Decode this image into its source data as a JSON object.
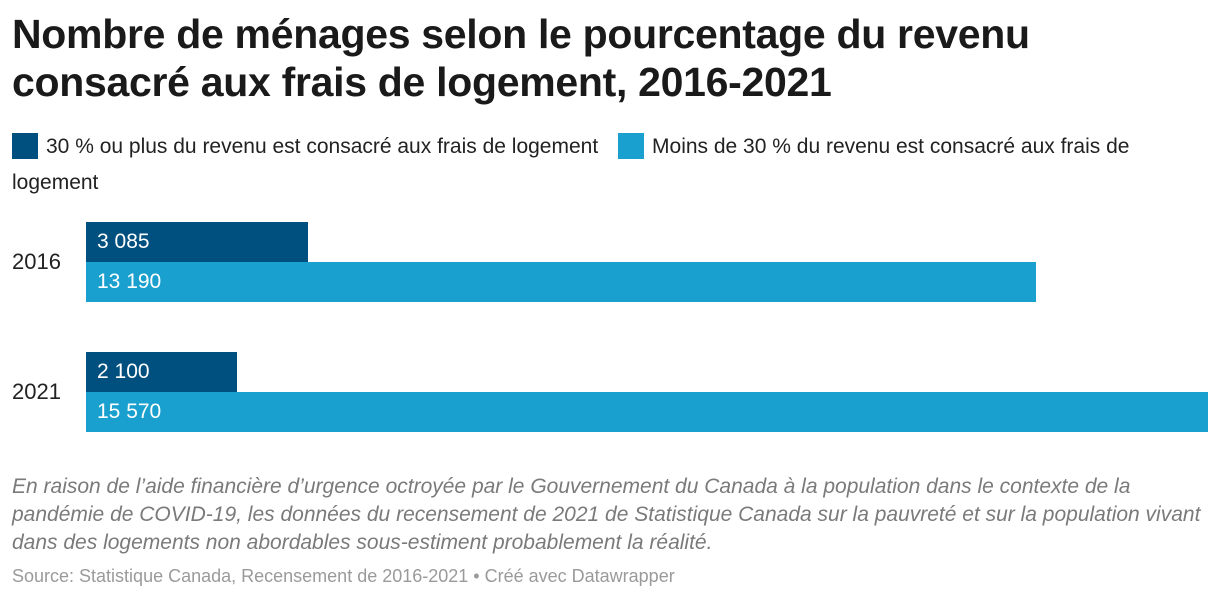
{
  "chart_data": {
    "type": "bar",
    "orientation": "horizontal",
    "title": "Nombre de ménages selon le pourcentage du revenu consacré aux frais de logement, 2016-2021",
    "categories": [
      "2016",
      "2021"
    ],
    "series": [
      {
        "name": "30 % ou plus du revenu est consacré aux frais de logement",
        "values": [
          3085,
          2100
        ],
        "labels": [
          "3 085",
          "2 100"
        ],
        "color": "#00507f"
      },
      {
        "name": "Moins de 30 % du revenu est consacré aux frais de logement",
        "values": [
          13190,
          15570
        ],
        "labels": [
          "13 190",
          "15 570"
        ],
        "color": "#1aa0cf"
      }
    ],
    "xlim": [
      0,
      15570
    ],
    "grid": false,
    "legend_position": "top"
  },
  "note": "En raison de l’aide financière d’urgence octroyée par le Gouvernement du Canada à la population dans le contexte de la pandémie de COVID-19, les données du recensement de 2021 de Statistique Canada sur la pauvreté et sur la population vivant dans des logements non abordables sous-estiment probablement la réalité.",
  "source": "Source: Statistique Canada, Recensement de 2016-2021 • Créé avec Datawrapper"
}
